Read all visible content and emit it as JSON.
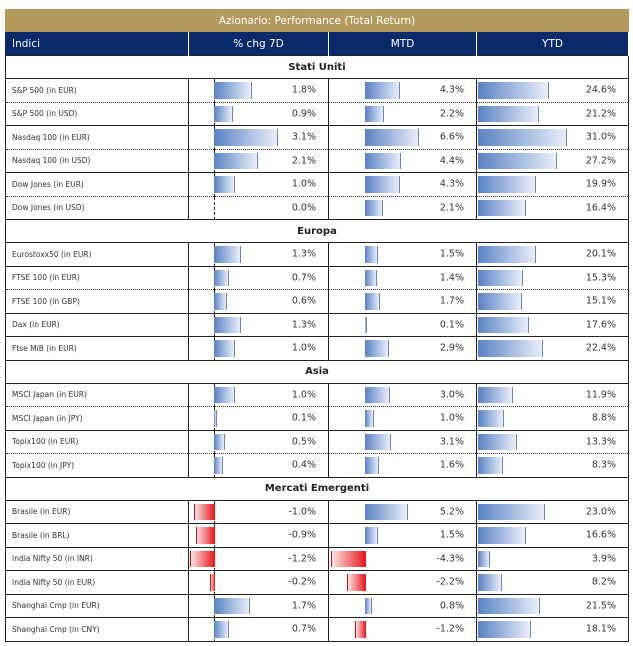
{
  "title": "Azionario: Performance (Total Return)",
  "headers": [
    "Indici",
    "% chg 7D",
    "MTD",
    "YTD"
  ],
  "colors": {
    "title_bg": "#b59a5e",
    "header_bg": "#0b2a6b",
    "positive_bar": "#5a82c4",
    "negative_bar": "#e8141c"
  },
  "sections": [
    {
      "name": "Stati Uniti",
      "rows": [
        {
          "name": "S&P 500 (in EUR)",
          "d7": 1.8,
          "mtd": 4.3,
          "ytd": 24.6,
          "d7_label": "1.8%",
          "mtd_label": "4.3%",
          "ytd_label": "24.6%"
        },
        {
          "name": "S&P 500 (in USD)",
          "d7": 0.9,
          "mtd": 2.2,
          "ytd": 21.2,
          "d7_label": "0.9%",
          "mtd_label": "2.2%",
          "ytd_label": "21.2%"
        },
        {
          "name": "Nasdaq 100 (in EUR)",
          "d7": 3.1,
          "mtd": 6.6,
          "ytd": 31.0,
          "d7_label": "3.1%",
          "mtd_label": "6.6%",
          "ytd_label": "31.0%"
        },
        {
          "name": "Nasdaq 100 (in USD)",
          "d7": 2.1,
          "mtd": 4.4,
          "ytd": 27.2,
          "d7_label": "2.1%",
          "mtd_label": "4.4%",
          "ytd_label": "27.2%"
        },
        {
          "name": "Dow Jones (in EUR)",
          "d7": 1.0,
          "mtd": 4.3,
          "ytd": 19.9,
          "d7_label": "1.0%",
          "mtd_label": "4.3%",
          "ytd_label": "19.9%"
        },
        {
          "name": "Dow Jones (in USD)",
          "d7": 0.0,
          "mtd": 2.1,
          "ytd": 16.4,
          "d7_label": "0.0%",
          "mtd_label": "2.1%",
          "ytd_label": "16.4%"
        }
      ]
    },
    {
      "name": "Europa",
      "rows": [
        {
          "name": "Eurostoxx50 (in EUR)",
          "d7": 1.3,
          "mtd": 1.5,
          "ytd": 20.1,
          "d7_label": "1.3%",
          "mtd_label": "1.5%",
          "ytd_label": "20.1%"
        },
        {
          "name": "FTSE 100 (in EUR)",
          "d7": 0.7,
          "mtd": 1.4,
          "ytd": 15.3,
          "d7_label": "0.7%",
          "mtd_label": "1.4%",
          "ytd_label": "15.3%"
        },
        {
          "name": "FTSE 100 (in GBP)",
          "d7": 0.6,
          "mtd": 1.7,
          "ytd": 15.1,
          "d7_label": "0.6%",
          "mtd_label": "1.7%",
          "ytd_label": "15.1%"
        },
        {
          "name": "Dax (in EUR)",
          "d7": 1.3,
          "mtd": 0.1,
          "ytd": 17.6,
          "d7_label": "1.3%",
          "mtd_label": "0.1%",
          "ytd_label": "17.6%"
        },
        {
          "name": "Ftse MiB (in EUR)",
          "d7": 1.0,
          "mtd": 2.9,
          "ytd": 22.4,
          "d7_label": "1.0%",
          "mtd_label": "2.9%",
          "ytd_label": "22.4%"
        }
      ]
    },
    {
      "name": "Asia",
      "rows": [
        {
          "name": "MSCI Japan (in EUR)",
          "d7": 1.0,
          "mtd": 3.0,
          "ytd": 11.9,
          "d7_label": "1.0%",
          "mtd_label": "3.0%",
          "ytd_label": "11.9%"
        },
        {
          "name": "MSCI Japan (in JPY)",
          "d7": 0.1,
          "mtd": 1.0,
          "ytd": 8.8,
          "d7_label": "0.1%",
          "mtd_label": "1.0%",
          "ytd_label": "8.8%"
        },
        {
          "name": "Topix100 (in EUR)",
          "d7": 0.5,
          "mtd": 3.1,
          "ytd": 13.3,
          "d7_label": "0.5%",
          "mtd_label": "3.1%",
          "ytd_label": "13.3%"
        },
        {
          "name": "Topix100 (in JPY)",
          "d7": 0.4,
          "mtd": 1.6,
          "ytd": 8.3,
          "d7_label": "0.4%",
          "mtd_label": "1.6%",
          "ytd_label": "8.3%"
        }
      ]
    },
    {
      "name": "Mercati Emergenti",
      "rows": [
        {
          "name": "Brasile (in EUR)",
          "d7": -1.0,
          "mtd": 5.2,
          "ytd": 23.0,
          "d7_label": "-1.0%",
          "mtd_label": "5.2%",
          "ytd_label": "23.0%"
        },
        {
          "name": "Brasile (in BRL)",
          "d7": -0.9,
          "mtd": 1.5,
          "ytd": 16.6,
          "d7_label": "-0.9%",
          "mtd_label": "1.5%",
          "ytd_label": "16.6%"
        },
        {
          "name": "India Nifty 50 (in INR)",
          "d7": -1.2,
          "mtd": -4.3,
          "ytd": 3.9,
          "d7_label": "-1.2%",
          "mtd_label": "-4.3%",
          "ytd_label": "3.9%"
        },
        {
          "name": "India Nifty 50 (in EUR)",
          "d7": -0.2,
          "mtd": -2.2,
          "ytd": 8.2,
          "d7_label": "-0.2%",
          "mtd_label": "-2.2%",
          "ytd_label": "8.2%"
        },
        {
          "name": "Shanghai Cmp (in EUR)",
          "d7": 1.7,
          "mtd": 0.8,
          "ytd": 21.5,
          "d7_label": "1.7%",
          "mtd_label": "0.8%",
          "ytd_label": "21.5%"
        },
        {
          "name": "Shanghai Cmp (in CNY)",
          "d7": 0.7,
          "mtd": -1.2,
          "ytd": 18.1,
          "d7_label": "0.7%",
          "mtd_label": "-1.2%",
          "ytd_label": "18.1%"
        }
      ]
    }
  ]
}
